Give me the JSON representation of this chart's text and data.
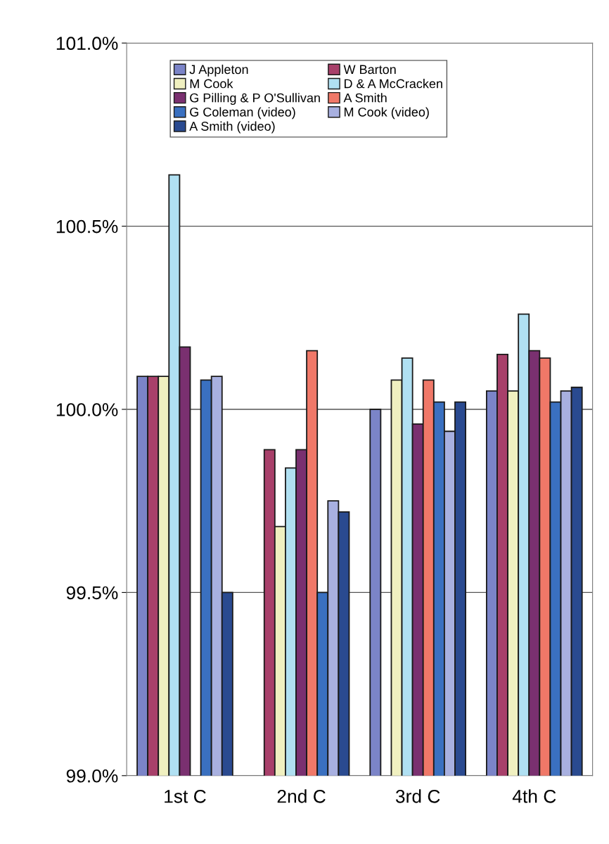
{
  "chart_data": {
    "type": "bar",
    "categories": [
      "1st C",
      "2nd C",
      "3rd C",
      "4th C"
    ],
    "series": [
      {
        "name": "J Appleton",
        "color": "#7b84c8",
        "values": [
          100.09,
          null,
          100.0,
          100.05
        ]
      },
      {
        "name": "W Barton",
        "color": "#a8406a",
        "values": [
          100.09,
          99.89,
          null,
          100.15
        ]
      },
      {
        "name": "M Cook",
        "color": "#f0f0c0",
        "values": [
          100.09,
          99.68,
          100.08,
          100.05
        ]
      },
      {
        "name": "D & A McCracken",
        "color": "#b0e0f2",
        "values": [
          100.64,
          99.84,
          100.14,
          100.26
        ]
      },
      {
        "name": "G Pilling & P O'Sullivan",
        "color": "#7a3070",
        "values": [
          100.17,
          99.89,
          99.96,
          100.16
        ]
      },
      {
        "name": "A Smith",
        "color": "#f07868",
        "values": [
          null,
          100.16,
          100.08,
          100.14
        ]
      },
      {
        "name": "G Coleman (video)",
        "color": "#3a70c0",
        "values": [
          100.08,
          99.5,
          100.02,
          100.02
        ]
      },
      {
        "name": "M Cook (video)",
        "color": "#a8b0e0",
        "values": [
          100.09,
          99.75,
          99.94,
          100.05
        ]
      },
      {
        "name": "A Smith (video)",
        "color": "#2a4a90",
        "values": [
          99.5,
          99.72,
          100.02,
          100.06
        ]
      }
    ],
    "ylim": [
      99.0,
      101.0
    ],
    "yticks": [
      {
        "value": 99.0,
        "label": "99.0%"
      },
      {
        "value": 99.5,
        "label": "99.5%"
      },
      {
        "value": 100.0,
        "label": "100.0%"
      },
      {
        "value": 100.5,
        "label": "100.5%"
      },
      {
        "value": 101.0,
        "label": "101.0%"
      }
    ],
    "grid": "y",
    "legend": "top left"
  }
}
